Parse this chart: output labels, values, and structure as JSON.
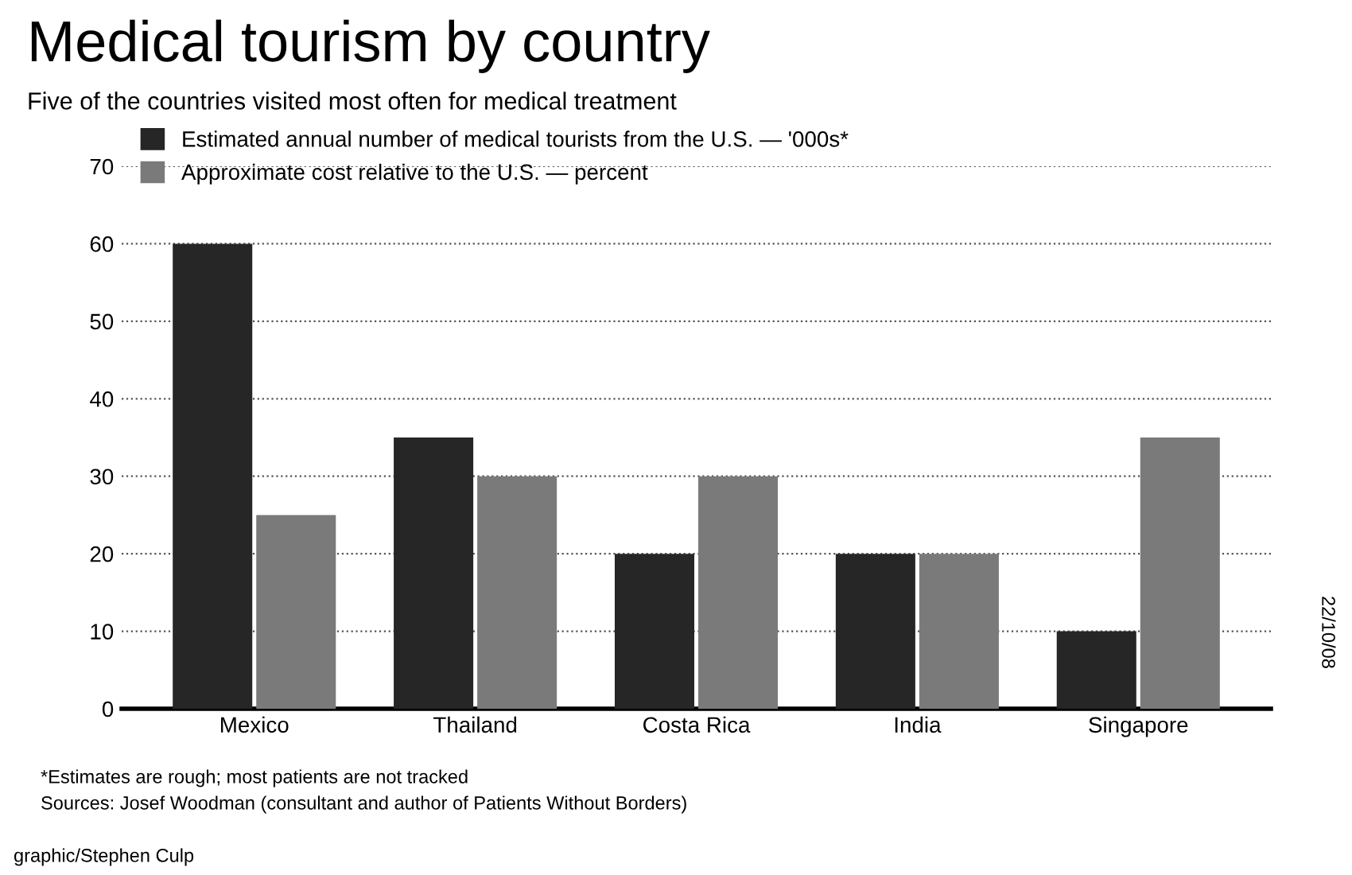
{
  "chart_data": {
    "type": "bar",
    "title": "Medical tourism by country",
    "subtitle": "Five of the countries visited most often for medical treatment",
    "categories": [
      "Mexico",
      "Thailand",
      "Costa Rica",
      "India",
      "Singapore"
    ],
    "series": [
      {
        "name": "Estimated annual number of medical tourists from the U.S. — '000s*",
        "color": "#262626",
        "values": [
          60,
          35,
          20,
          20,
          10
        ]
      },
      {
        "name": "Approximate cost relative to the U.S. — percent",
        "color": "#7a7a7a",
        "values": [
          25,
          30,
          30,
          20,
          35
        ]
      }
    ],
    "ylim": [
      0,
      70
    ],
    "yticks": [
      0,
      10,
      20,
      30,
      40,
      50,
      60,
      70
    ],
    "grid": "y",
    "legend": "top left",
    "annotations": [
      "*Estimates are rough; most patients are not tracked",
      "Sources: Josef Woodman (consultant and author of Patients Without Borders)",
      "graphic/Stephen Culp",
      "22/10/08"
    ]
  }
}
